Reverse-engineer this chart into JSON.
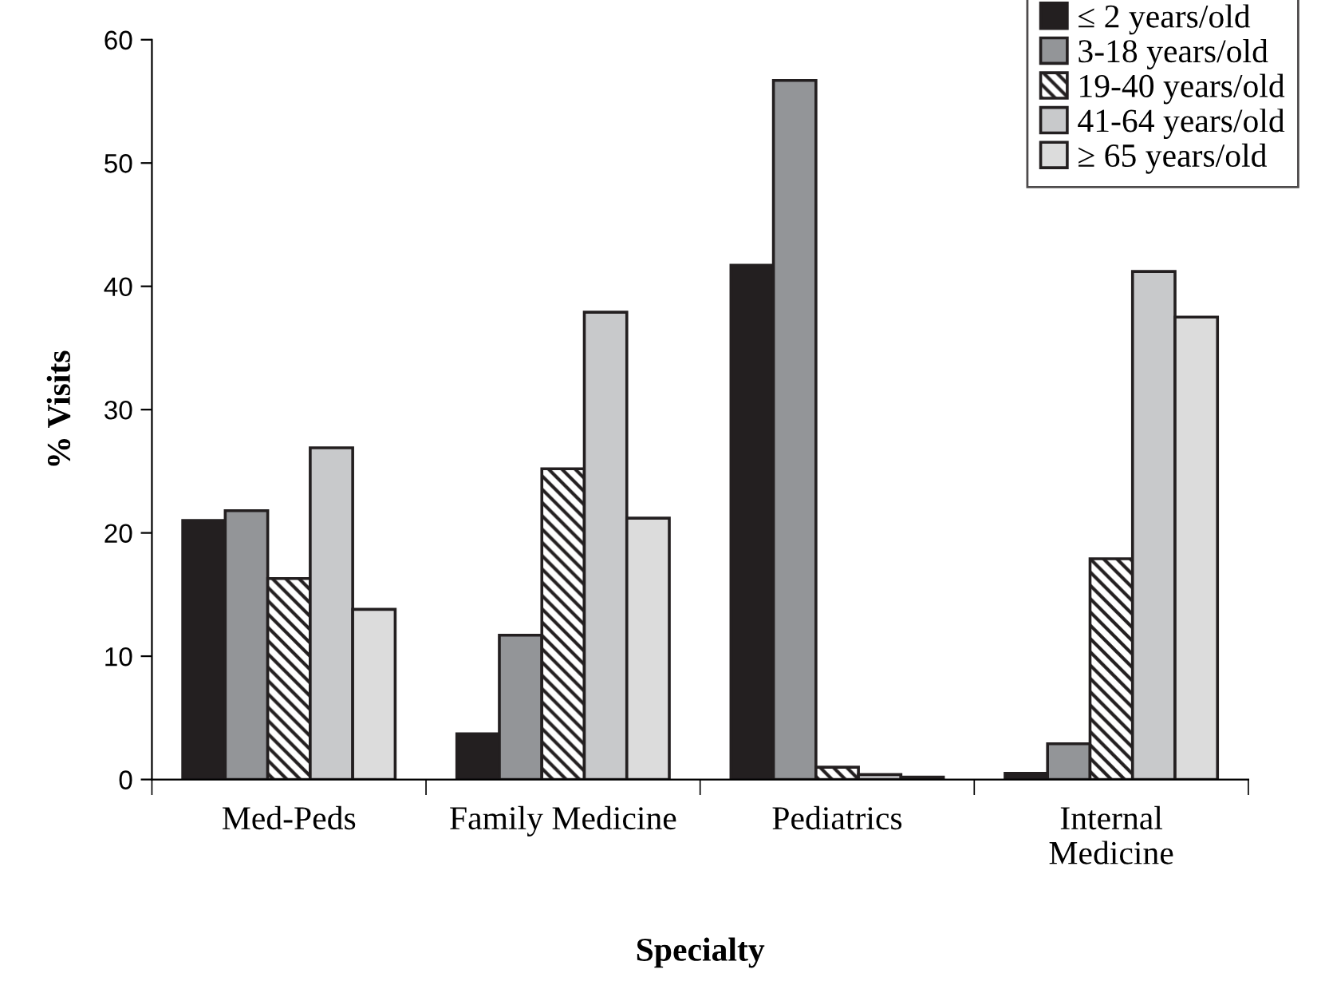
{
  "chart_data": {
    "type": "bar",
    "xlabel": "Specialty",
    "ylabel": "% Visits",
    "categories": [
      "Med-Peds",
      "Family Medicine",
      "Pediatrics",
      "Internal\nMedicine"
    ],
    "series": [
      {
        "name": "≤ 2 years/old",
        "color": "#231f20",
        "values": [
          21.0,
          3.7,
          41.7,
          0.5
        ]
      },
      {
        "name": "3-18 years/old",
        "color": "#939598",
        "values": [
          21.8,
          11.7,
          56.7,
          2.9
        ]
      },
      {
        "name": "19-40 years/old",
        "color": "#231f20",
        "values": [
          16.3,
          25.2,
          1.0,
          17.9
        ]
      },
      {
        "name": "41-64 years/old",
        "color": "#c8c9cb",
        "values": [
          26.9,
          37.9,
          0.4,
          41.2
        ]
      },
      {
        "name": "≥ 65 years/old",
        "color": "#dcdcdc",
        "values": [
          13.8,
          21.2,
          0.2,
          37.5
        ]
      }
    ],
    "ylim": [
      0,
      60
    ],
    "yticks": [
      0,
      10,
      20,
      30,
      40,
      50,
      60
    ],
    "grid": false,
    "legend": "top right"
  }
}
